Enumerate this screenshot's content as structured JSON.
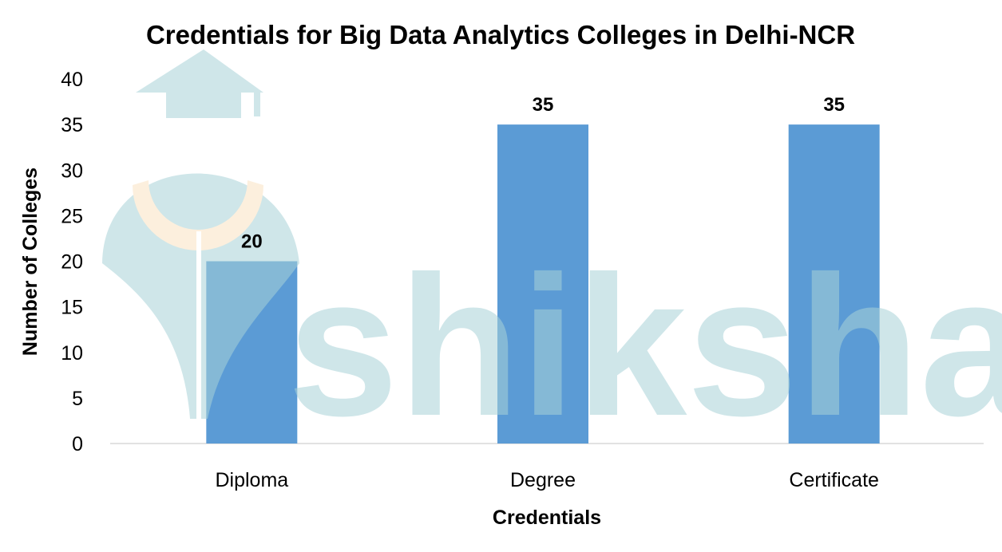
{
  "chart_data": {
    "type": "bar",
    "title": "Credentials for Big Data Analytics Colleges in Delhi-NCR",
    "xlabel": "Credentials",
    "ylabel": "Number of Colleges",
    "categories": [
      "Diploma",
      "Degree",
      "Certificate"
    ],
    "values": [
      20,
      35,
      35
    ],
    "ylim": [
      0,
      40
    ],
    "yticks": [
      0,
      5,
      10,
      15,
      20,
      25,
      30,
      35,
      40
    ],
    "grid": false,
    "legend": "none",
    "data_labels": true,
    "bar_color": "#5B9BD5"
  },
  "watermark": {
    "text": "shiksha",
    "color": "#A9D3D8"
  }
}
